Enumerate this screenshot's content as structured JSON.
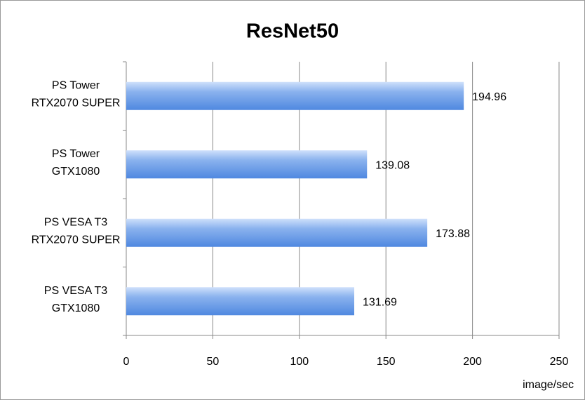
{
  "chart_data": {
    "type": "bar",
    "orientation": "horizontal",
    "title": "ResNet50",
    "x_label": "image/sec",
    "categories": [
      [
        "PS Tower",
        "RTX2070 SUPER"
      ],
      [
        "PS Tower",
        "GTX1080"
      ],
      [
        "PS VESA T3",
        "RTX2070 SUPER"
      ],
      [
        "PS VESA T3",
        "GTX1080"
      ]
    ],
    "values": [
      194.96,
      139.08,
      173.88,
      131.69
    ],
    "color": "#4f88e0",
    "xlim": [
      0,
      250
    ],
    "xticks": [
      0,
      50,
      100,
      150,
      200,
      250
    ],
    "grid": true
  }
}
